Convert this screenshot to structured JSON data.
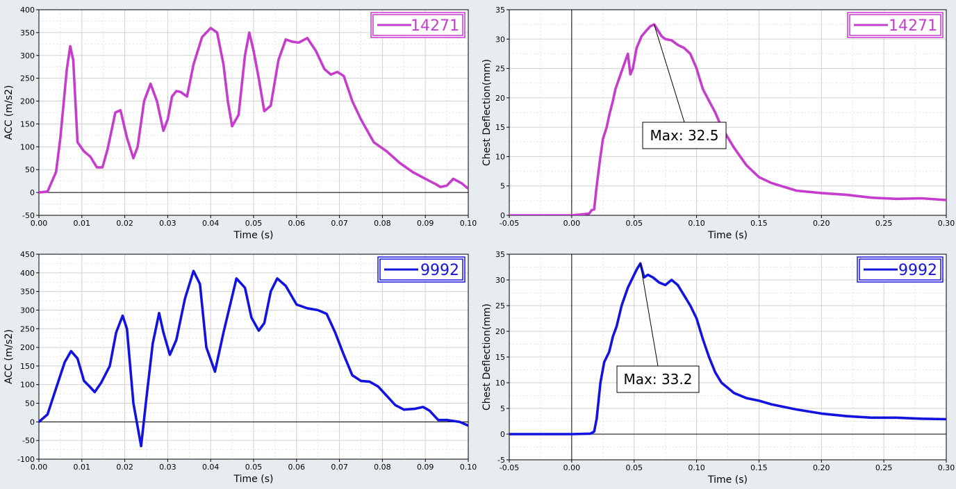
{
  "chart_data": [
    {
      "type": "line",
      "xlabel": "Time (s)",
      "ylabel": "ACC (m/s2)",
      "xlim": [
        0,
        0.1
      ],
      "ylim": [
        -50,
        400
      ],
      "xticks": [
        "0.00",
        "0.01",
        "0.02",
        "0.03",
        "0.04",
        "0.05",
        "0.06",
        "0.07",
        "0.08",
        "0.09",
        "0.10"
      ],
      "yticks": [
        "-50",
        "0",
        "50",
        "100",
        "150",
        "200",
        "250",
        "300",
        "350",
        "400"
      ],
      "grid": true,
      "legend_position": "top-right",
      "series": [
        {
          "name": "14271",
          "color": "#c63ccc",
          "x": [
            0,
            0.002,
            0.004,
            0.005,
            0.0065,
            0.0073,
            0.008,
            0.009,
            0.0105,
            0.012,
            0.0135,
            0.0148,
            0.016,
            0.0178,
            0.019,
            0.0205,
            0.022,
            0.023,
            0.0245,
            0.026,
            0.0275,
            0.029,
            0.03,
            0.031,
            0.032,
            0.033,
            0.0345,
            0.036,
            0.038,
            0.04,
            0.0415,
            0.043,
            0.044,
            0.045,
            0.0465,
            0.048,
            0.049,
            0.05,
            0.0512,
            0.0525,
            0.054,
            0.0558,
            0.0575,
            0.059,
            0.0605,
            0.0625,
            0.0645,
            0.0665,
            0.068,
            0.0695,
            0.071,
            0.073,
            0.075,
            0.078,
            0.081,
            0.084,
            0.087,
            0.09,
            0.0925,
            0.0935,
            0.095,
            0.0965,
            0.0985,
            0.1
          ],
          "y": [
            0,
            2,
            45,
            120,
            270,
            320,
            290,
            110,
            90,
            78,
            55,
            55,
            95,
            175,
            180,
            120,
            75,
            100,
            200,
            238,
            200,
            135,
            160,
            210,
            222,
            220,
            210,
            280,
            340,
            360,
            350,
            280,
            200,
            145,
            170,
            300,
            350,
            310,
            250,
            178,
            190,
            290,
            335,
            330,
            328,
            338,
            310,
            270,
            258,
            264,
            255,
            200,
            160,
            110,
            90,
            65,
            45,
            30,
            18,
            12,
            15,
            30,
            20,
            8
          ]
        }
      ]
    },
    {
      "type": "line",
      "xlabel": "Time (s)",
      "ylabel": "Chest Deflection(mm)",
      "xlim": [
        -0.05,
        0.3
      ],
      "ylim": [
        0,
        35
      ],
      "xticks": [
        "-0.05",
        "0.00",
        "0.05",
        "0.10",
        "0.15",
        "0.20",
        "0.25",
        "0.30"
      ],
      "yticks": [
        "0",
        "5",
        "10",
        "15",
        "20",
        "25",
        "30",
        "35"
      ],
      "grid": true,
      "legend_position": "top-right",
      "annotation": {
        "label": "Max: 32.5",
        "x": 0.066,
        "y": 32.5
      },
      "series": [
        {
          "name": "14271",
          "color": "#c63ccc",
          "x": [
            -0.05,
            0.0,
            0.014,
            0.016,
            0.018,
            0.02,
            0.023,
            0.025,
            0.028,
            0.03,
            0.033,
            0.035,
            0.04,
            0.045,
            0.047,
            0.049,
            0.052,
            0.056,
            0.06,
            0.063,
            0.066,
            0.069,
            0.072,
            0.075,
            0.08,
            0.085,
            0.09,
            0.095,
            0.1,
            0.105,
            0.11,
            0.115,
            0.12,
            0.13,
            0.14,
            0.15,
            0.16,
            0.18,
            0.2,
            0.22,
            0.24,
            0.26,
            0.28,
            0.3
          ],
          "y": [
            0,
            0,
            0.3,
            0.9,
            1,
            5,
            10,
            13,
            15,
            17,
            19.5,
            21.5,
            24.5,
            27.5,
            24,
            25,
            28.5,
            30.5,
            31.5,
            32.2,
            32.5,
            31.5,
            30.5,
            30,
            29.8,
            29,
            28.5,
            27.5,
            25,
            21.5,
            19.5,
            17.5,
            15,
            11.5,
            8.5,
            6.5,
            5.5,
            4.2,
            3.8,
            3.5,
            3.0,
            2.8,
            2.9,
            2.6
          ]
        }
      ]
    },
    {
      "type": "line",
      "xlabel": "Time (s)",
      "ylabel": "ACC (m/s2)",
      "xlim": [
        0,
        0.1
      ],
      "ylim": [
        -100,
        450
      ],
      "xticks": [
        "0.00",
        "0.01",
        "0.02",
        "0.03",
        "0.04",
        "0.05",
        "0.06",
        "0.07",
        "0.08",
        "0.09",
        "0.10"
      ],
      "yticks": [
        "-100",
        "-50",
        "0",
        "50",
        "100",
        "150",
        "200",
        "250",
        "300",
        "350",
        "400",
        "450"
      ],
      "grid": true,
      "legend_position": "top-right",
      "series": [
        {
          "name": "9992",
          "color": "#1313e0",
          "x": [
            0,
            0.002,
            0.004,
            0.006,
            0.0075,
            0.009,
            0.0105,
            0.0118,
            0.013,
            0.0145,
            0.0165,
            0.018,
            0.0195,
            0.0205,
            0.022,
            0.0238,
            0.025,
            0.0265,
            0.028,
            0.029,
            0.0305,
            0.032,
            0.034,
            0.036,
            0.0375,
            0.039,
            0.041,
            0.043,
            0.046,
            0.048,
            0.0495,
            0.0512,
            0.0525,
            0.054,
            0.0555,
            0.0575,
            0.06,
            0.0625,
            0.065,
            0.067,
            0.069,
            0.071,
            0.073,
            0.075,
            0.077,
            0.079,
            0.081,
            0.083,
            0.085,
            0.0875,
            0.0895,
            0.091,
            0.093,
            0.095,
            0.098,
            0.1
          ],
          "y": [
            0,
            20,
            90,
            160,
            190,
            170,
            110,
            95,
            80,
            105,
            150,
            240,
            285,
            250,
            50,
            -65,
            60,
            210,
            292,
            240,
            180,
            220,
            330,
            405,
            370,
            200,
            135,
            240,
            385,
            360,
            280,
            245,
            265,
            350,
            385,
            365,
            315,
            305,
            300,
            290,
            240,
            180,
            125,
            110,
            108,
            95,
            70,
            45,
            33,
            35,
            40,
            30,
            5,
            5,
            0,
            -10
          ]
        }
      ]
    },
    {
      "type": "line",
      "xlabel": "Time (s)",
      "ylabel": "Chest Deflection(mm)",
      "xlim": [
        -0.05,
        0.3
      ],
      "ylim": [
        -5,
        35
      ],
      "xticks": [
        "-0.05",
        "0.00",
        "0.05",
        "0.10",
        "0.15",
        "0.20",
        "0.25",
        "0.30"
      ],
      "yticks": [
        "-5",
        "0",
        "5",
        "10",
        "15",
        "20",
        "25",
        "30",
        "35"
      ],
      "grid": true,
      "legend_position": "top-right",
      "annotation": {
        "label": "Max: 33.2",
        "x": 0.055,
        "y": 33.2
      },
      "series": [
        {
          "name": "9992",
          "color": "#1313e0",
          "x": [
            -0.05,
            0.0,
            0.015,
            0.018,
            0.02,
            0.023,
            0.026,
            0.03,
            0.033,
            0.036,
            0.04,
            0.045,
            0.049,
            0.052,
            0.055,
            0.058,
            0.061,
            0.065,
            0.07,
            0.075,
            0.08,
            0.085,
            0.09,
            0.095,
            0.1,
            0.105,
            0.11,
            0.115,
            0.12,
            0.125,
            0.13,
            0.14,
            0.15,
            0.16,
            0.18,
            0.2,
            0.22,
            0.24,
            0.26,
            0.28,
            0.3
          ],
          "y": [
            0,
            0,
            0.1,
            0.5,
            3,
            10,
            14,
            16,
            19,
            21,
            25,
            28.5,
            30.5,
            32,
            33.2,
            30.5,
            31,
            30.5,
            29.5,
            29,
            30,
            29,
            27,
            25,
            22.5,
            18.5,
            15,
            12,
            10,
            9,
            8,
            7,
            6.5,
            5.8,
            4.8,
            4.0,
            3.5,
            3.2,
            3.2,
            3.0,
            2.9
          ]
        }
      ]
    }
  ]
}
